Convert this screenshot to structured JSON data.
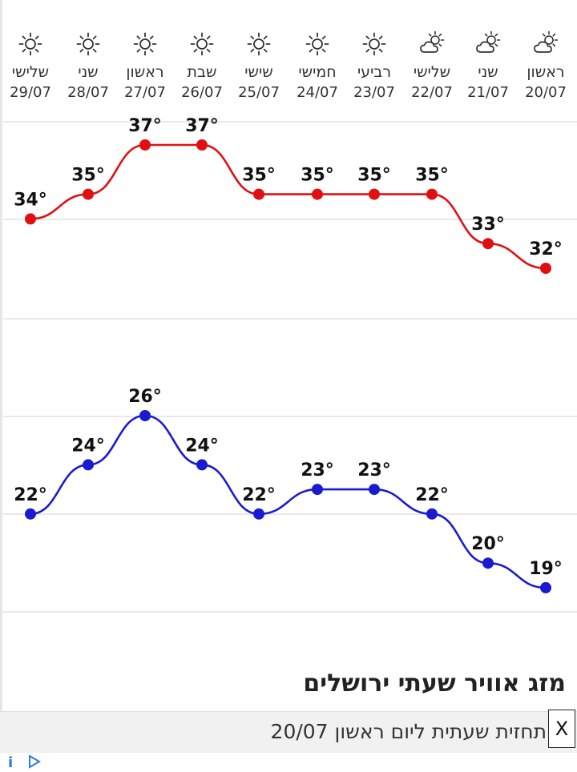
{
  "days": [
    {
      "name": "שלישי",
      "date": "29/07",
      "icon": "sun-icon"
    },
    {
      "name": "שני",
      "date": "28/07",
      "icon": "sun-icon"
    },
    {
      "name": "ראשון",
      "date": "27/07",
      "icon": "sun-icon"
    },
    {
      "name": "שבת",
      "date": "26/07",
      "icon": "sun-icon"
    },
    {
      "name": "שישי",
      "date": "25/07",
      "icon": "sun-icon"
    },
    {
      "name": "חמישי",
      "date": "24/07",
      "icon": "sun-icon"
    },
    {
      "name": "רביעי",
      "date": "23/07",
      "icon": "sun-icon"
    },
    {
      "name": "שלישי",
      "date": "22/07",
      "icon": "partly-cloudy-icon"
    },
    {
      "name": "שני",
      "date": "21/07",
      "icon": "partly-cloudy-icon"
    },
    {
      "name": "ראשון",
      "date": "20/07",
      "icon": "partly-cloudy-icon"
    }
  ],
  "chart_data": {
    "type": "line",
    "categories": [
      "29/07",
      "28/07",
      "27/07",
      "26/07",
      "25/07",
      "24/07",
      "23/07",
      "22/07",
      "21/07",
      "20/07"
    ],
    "series": [
      {
        "values": [
          34,
          35,
          37,
          37,
          35,
          35,
          35,
          35,
          33,
          32
        ],
        "color": "#e01010"
      },
      {
        "values": [
          22,
          24,
          26,
          24,
          22,
          23,
          23,
          22,
          20,
          19
        ],
        "color": "#1a1ad0"
      }
    ],
    "label_suffix": "°",
    "grid": true,
    "colors": {
      "high": "#e01010",
      "low": "#1a1ad0",
      "grid": "#e2e2e2"
    }
  },
  "section_title": "מזג אוויר שעתי ירושלים",
  "ad": {
    "text": "תחזית שעתית ליום ראשון 20/07",
    "close_label": "X",
    "info_label": "i"
  }
}
